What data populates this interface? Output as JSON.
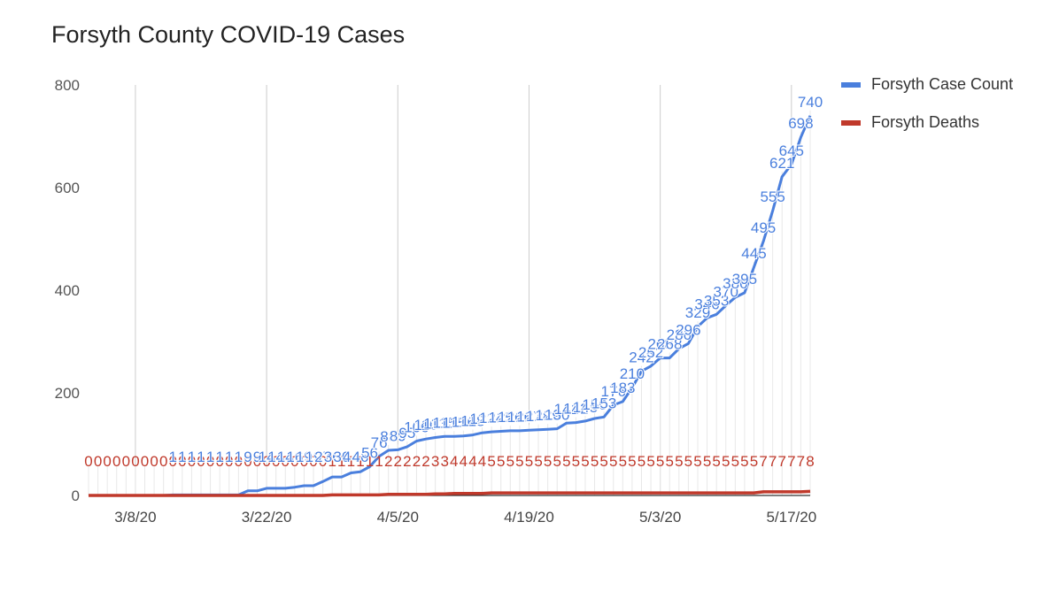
{
  "chart_data": {
    "type": "line",
    "title": "Forsyth County COVID-19 Cases",
    "xlabel": "",
    "ylabel": "",
    "ylim": [
      0,
      800
    ],
    "yticks": [
      0,
      200,
      400,
      600,
      800
    ],
    "xtick_labels": [
      "3/8/20",
      "3/22/20",
      "4/5/20",
      "4/19/20",
      "5/3/20",
      "5/17/20"
    ],
    "grid": {
      "vertical": true,
      "horizontal": false
    },
    "legend_position": "right",
    "x_start": "3/3/20",
    "series": [
      {
        "name": "Forsyth Case Count",
        "color": "#4a7fdd",
        "values": [
          0,
          0,
          0,
          0,
          0,
          0,
          0,
          0,
          0,
          1,
          1,
          1,
          1,
          1,
          1,
          1,
          1,
          9,
          9,
          14,
          14,
          14,
          16,
          19,
          19,
          27,
          36,
          36,
          44,
          46,
          56,
          76,
          88,
          89,
          95,
          106,
          110,
          113,
          115,
          115,
          116,
          118,
          122,
          124,
          125,
          126,
          126,
          127,
          128,
          129,
          130,
          141,
          142,
          145,
          150,
          153,
          176,
          183,
          210,
          242,
          252,
          268,
          268,
          286,
          296,
          329,
          346,
          353,
          370,
          386,
          395,
          445,
          495,
          555,
          621,
          645,
          698,
          740
        ]
      },
      {
        "name": "Forsyth Deaths",
        "color": "#c0392b",
        "values": [
          0,
          0,
          0,
          0,
          0,
          0,
          0,
          0,
          0,
          0,
          0,
          0,
          0,
          0,
          0,
          0,
          0,
          0,
          0,
          0,
          0,
          0,
          0,
          0,
          0,
          0,
          1,
          1,
          1,
          1,
          1,
          1,
          2,
          2,
          2,
          2,
          2,
          3,
          3,
          4,
          4,
          4,
          4,
          5,
          5,
          5,
          5,
          5,
          5,
          5,
          5,
          5,
          5,
          5,
          5,
          5,
          5,
          5,
          5,
          5,
          5,
          5,
          5,
          5,
          5,
          5,
          5,
          5,
          5,
          5,
          5,
          5,
          7,
          7,
          7,
          7,
          7,
          8
        ]
      }
    ]
  }
}
